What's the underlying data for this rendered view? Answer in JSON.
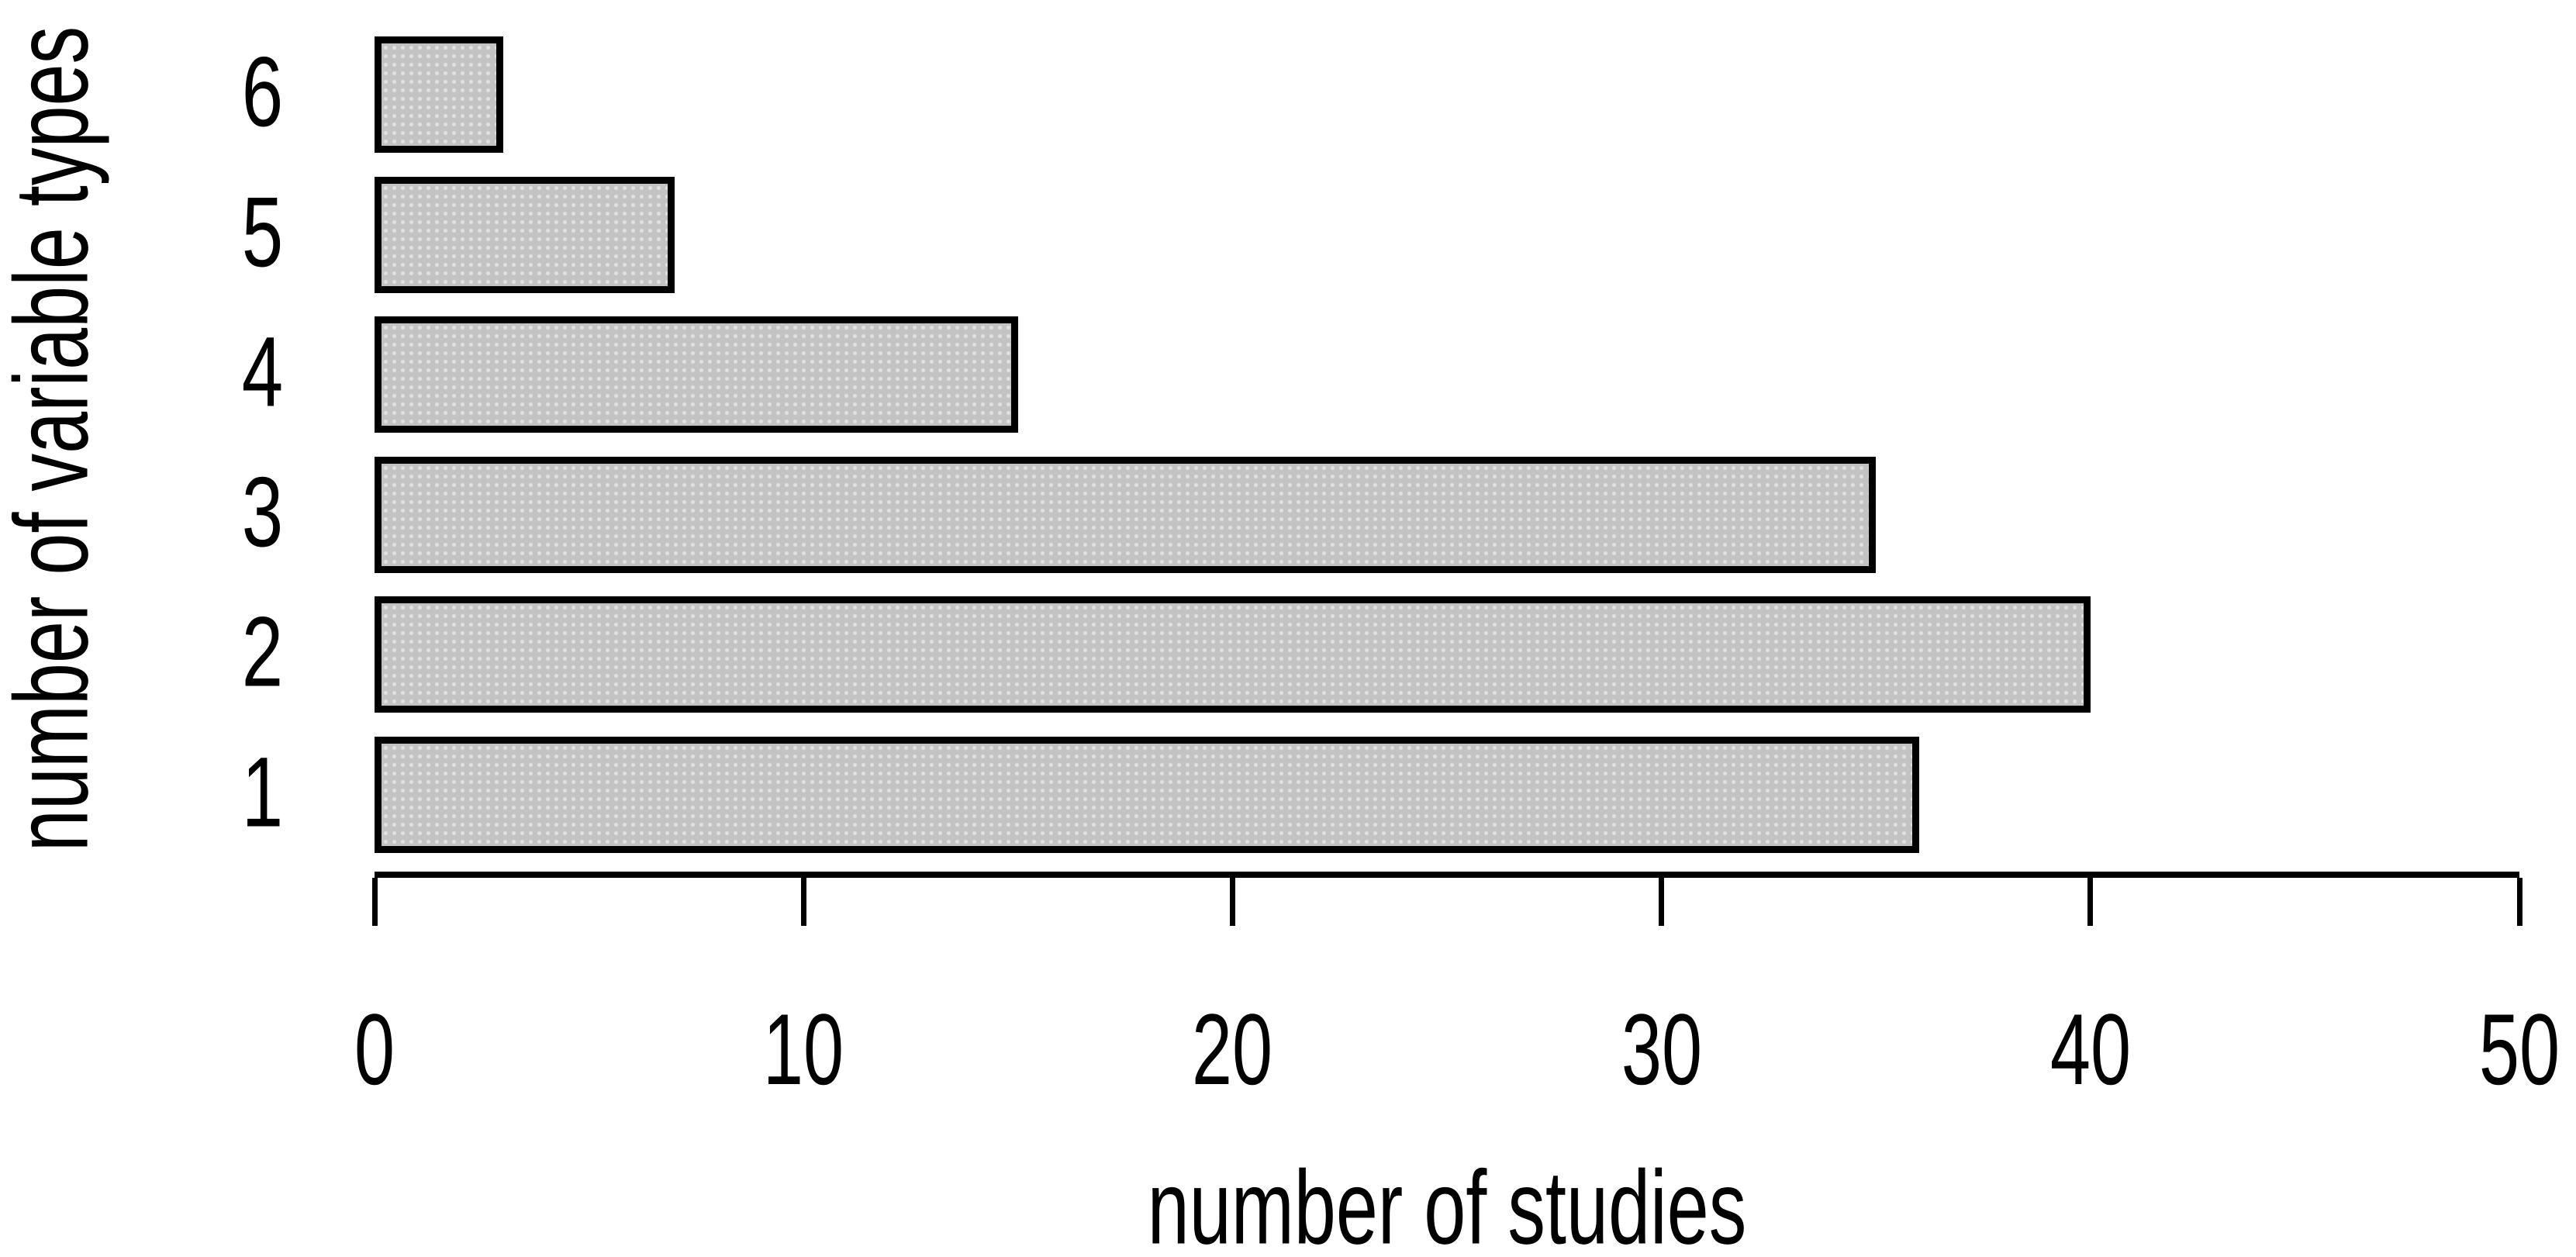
{
  "chart_data": {
    "type": "bar",
    "orientation": "horizontal",
    "title": "",
    "xlabel": "number of studies",
    "ylabel": "number of variable types",
    "categories_top_to_bottom": [
      "6",
      "5",
      "4",
      "3",
      "2",
      "1"
    ],
    "values_top_to_bottom": [
      3,
      7,
      15,
      35,
      40,
      36
    ],
    "series": [
      {
        "name": "number of studies",
        "values_top_to_bottom": [
          3,
          7,
          15,
          35,
          40,
          36
        ]
      }
    ],
    "x_tick_labels": [
      "0",
      "10",
      "20",
      "30",
      "40",
      "50"
    ],
    "x_tick_values": [
      0,
      10,
      20,
      30,
      40,
      50
    ],
    "xlim": [
      0,
      50
    ],
    "grid": false,
    "legend_position": "none",
    "bar_fill_color": "#c3c3c3",
    "bar_border_color": "#000000",
    "axis_color": "#000000",
    "background_color": "#ffffff"
  }
}
